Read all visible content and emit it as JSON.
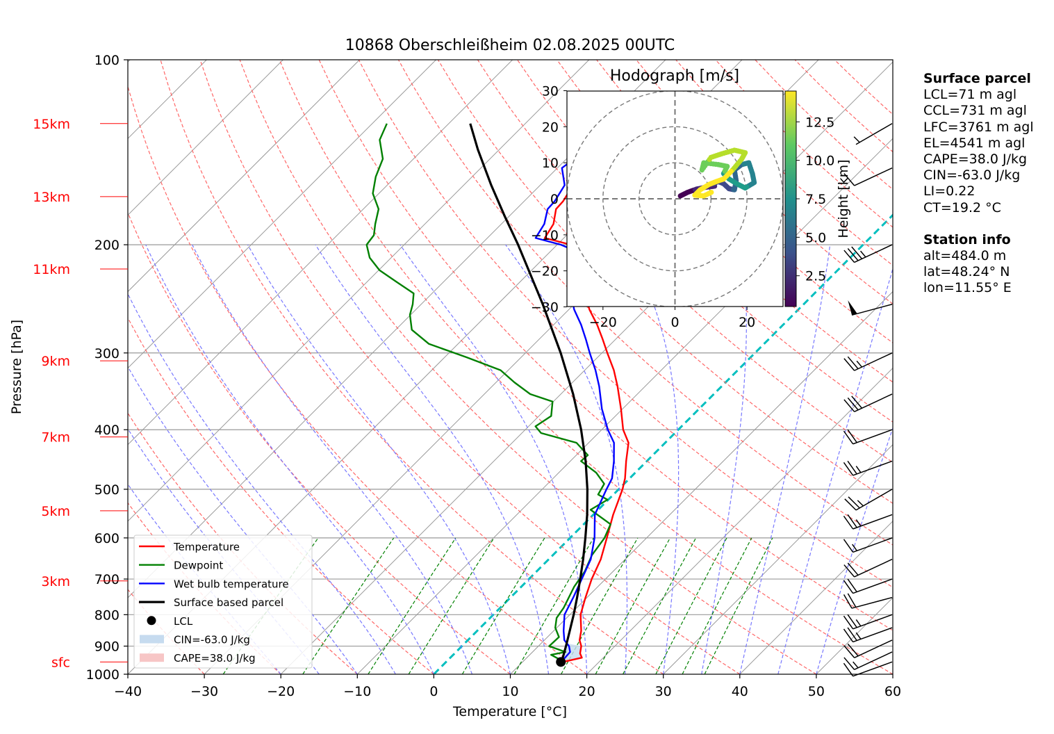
{
  "title": "10868 Oberschleißheim 02.08.2025 00UTC",
  "colors": {
    "temperature": "#ff0000",
    "dewpoint": "#008000",
    "wetbulb": "#0000ff",
    "parcel": "#000000",
    "dry_adiabat": "#ff6666",
    "moist_adiabat": "#7777ff",
    "mixing_ratio": "#008000",
    "isotherm": "#999999",
    "zero_isotherm": "#00bfbf",
    "cin_fill": "#c6dbef",
    "cape_fill": "#f7c6c6",
    "height_labels": "#ff0000"
  },
  "chart_data": [
    {
      "type": "line",
      "subtype": "skew-t log-p",
      "title": "10868 Oberschleißheim 02.08.2025 00UTC",
      "xlabel": "Temperature [°C]",
      "ylabel": "Pressure [hPa]",
      "xlim": [
        -40,
        60
      ],
      "ylim": [
        1000,
        100
      ],
      "y_scale": "log",
      "x_ticks": [
        "−40",
        "−30",
        "−20",
        "−10",
        "0",
        "10",
        "20",
        "30",
        "40",
        "50",
        "60"
      ],
      "y_ticks": [
        {
          "p": 100,
          "label": "100"
        },
        {
          "p": 200,
          "label": "200"
        },
        {
          "p": 300,
          "label": "300"
        },
        {
          "p": 400,
          "label": "400"
        },
        {
          "p": 500,
          "label": "500"
        },
        {
          "p": 600,
          "label": "600"
        },
        {
          "p": 700,
          "label": "700"
        },
        {
          "p": 800,
          "label": "800"
        },
        {
          "p": 900,
          "label": "900"
        },
        {
          "p": 1000,
          "label": "1000"
        }
      ],
      "height_labels": [
        {
          "label": "15km",
          "p": 127
        },
        {
          "label": "13km",
          "p": 167
        },
        {
          "label": "11km",
          "p": 219
        },
        {
          "label": "9km",
          "p": 309
        },
        {
          "label": "7km",
          "p": 411
        },
        {
          "label": "5km",
          "p": 542
        },
        {
          "label": "3km",
          "p": 705
        },
        {
          "label": "sfc",
          "p": 955
        }
      ],
      "grid": true,
      "legend_position": "lower-left",
      "legend": [
        {
          "label": "Temperature",
          "kind": "line",
          "color": "#ff0000"
        },
        {
          "label": "Dewpoint",
          "kind": "line",
          "color": "#008000"
        },
        {
          "label": "Wet bulb temperature",
          "kind": "line",
          "color": "#0000ff"
        },
        {
          "label": "Surface based parcel",
          "kind": "line",
          "color": "#000000"
        },
        {
          "label": "LCL",
          "kind": "dot",
          "color": "#000000"
        },
        {
          "label": "CIN=-63.0 J/kg",
          "kind": "patch",
          "color": "#c6dbef"
        },
        {
          "label": "CAPE=38.0 J/kg",
          "kind": "patch",
          "color": "#f7c6c6"
        }
      ],
      "series": [
        {
          "name": "Temperature",
          "points": [
            [
              955,
              15.3
            ],
            [
              940,
              17.2
            ],
            [
              925,
              16.4
            ],
            [
              900,
              15.6
            ],
            [
              880,
              14.6
            ],
            [
              850,
              13.6
            ],
            [
              800,
              11.4
            ],
            [
              750,
              9.8
            ],
            [
              700,
              8.2
            ],
            [
              650,
              6.8
            ],
            [
              600,
              4.8
            ],
            [
              550,
              2.6
            ],
            [
              500,
              0.5
            ],
            [
              480,
              -0.6
            ],
            [
              450,
              -2.7
            ],
            [
              420,
              -4.8
            ],
            [
              400,
              -7.2
            ],
            [
              370,
              -10.2
            ],
            [
              340,
              -13.6
            ],
            [
              320,
              -16.2
            ],
            [
              300,
              -19.3
            ],
            [
              285,
              -21.7
            ],
            [
              270,
              -24.3
            ],
            [
              255,
              -27.3
            ],
            [
              245,
              -29.1
            ],
            [
              235,
              -30.8
            ],
            [
              225,
              -32.3
            ],
            [
              218,
              -33.3
            ],
            [
              212,
              -33.8
            ],
            [
              205,
              -35.4
            ],
            [
              200,
              -38.2
            ],
            [
              195,
              -42.5
            ],
            [
              185,
              -43.2
            ],
            [
              175,
              -44.8
            ],
            [
              170,
              -44.9
            ],
            [
              160,
              -45.7
            ],
            [
              150,
              -48.4
            ],
            [
              145,
              -48.0
            ],
            [
              140,
              -48.6
            ],
            [
              135,
              -49.2
            ],
            [
              130,
              -51.7
            ],
            [
              127,
              -51.8
            ]
          ]
        },
        {
          "name": "Dewpoint",
          "points": [
            [
              955,
              14.8
            ],
            [
              945,
              14.4
            ],
            [
              930,
              12.8
            ],
            [
              920,
              14.3
            ],
            [
              900,
              11.4
            ],
            [
              870,
              11.5
            ],
            [
              840,
              9.8
            ],
            [
              810,
              8.7
            ],
            [
              780,
              8.3
            ],
            [
              720,
              6.9
            ],
            [
              680,
              6.3
            ],
            [
              640,
              5.1
            ],
            [
              600,
              4.5
            ],
            [
              570,
              3.5
            ],
            [
              540,
              -1.0
            ],
            [
              520,
              -0.1
            ],
            [
              510,
              -2.0
            ],
            [
              490,
              -2.6
            ],
            [
              470,
              -5.1
            ],
            [
              450,
              -8.6
            ],
            [
              440,
              -8.5
            ],
            [
              420,
              -11.6
            ],
            [
              405,
              -17.5
            ],
            [
              395,
              -19.1
            ],
            [
              380,
              -18.4
            ],
            [
              360,
              -20.1
            ],
            [
              350,
              -24.0
            ],
            [
              335,
              -27.6
            ],
            [
              320,
              -31.0
            ],
            [
              305,
              -37.1
            ],
            [
              290,
              -43.8
            ],
            [
              275,
              -47.9
            ],
            [
              260,
              -50.1
            ],
            [
              250,
              -51.1
            ],
            [
              240,
              -52.4
            ],
            [
              230,
              -56.1
            ],
            [
              220,
              -59.9
            ],
            [
              210,
              -62.8
            ],
            [
              200,
              -64.9
            ],
            [
              193,
              -65.2
            ],
            [
              185,
              -66.5
            ],
            [
              175,
              -68.0
            ],
            [
              165,
              -70.8
            ],
            [
              155,
              -72.6
            ],
            [
              145,
              -74.0
            ],
            [
              135,
              -76.9
            ],
            [
              127,
              -78.1
            ]
          ]
        },
        {
          "name": "Wet bulb temperature",
          "points": [
            [
              955,
              15.0
            ],
            [
              940,
              15.0
            ],
            [
              920,
              14.9
            ],
            [
              900,
              14.0
            ],
            [
              880,
              12.6
            ],
            [
              850,
              11.3
            ],
            [
              800,
              9.3
            ],
            [
              750,
              8.2
            ],
            [
              700,
              6.9
            ],
            [
              650,
              5.5
            ],
            [
              600,
              3.2
            ],
            [
              550,
              0.2
            ],
            [
              500,
              -1.6
            ],
            [
              480,
              -2.3
            ],
            [
              450,
              -4.3
            ],
            [
              420,
              -6.7
            ],
            [
              400,
              -9.2
            ],
            [
              370,
              -12.7
            ],
            [
              340,
              -16.0
            ],
            [
              320,
              -18.6
            ],
            [
              300,
              -21.6
            ],
            [
              285,
              -23.9
            ],
            [
              270,
              -26.4
            ],
            [
              255,
              -29.3
            ],
            [
              245,
              -31.0
            ],
            [
              235,
              -32.6
            ],
            [
              225,
              -34.0
            ],
            [
              218,
              -34.7
            ],
            [
              212,
              -35.1
            ],
            [
              205,
              -36.6
            ],
            [
              200,
              -39.5
            ],
            [
              195,
              -43.7
            ],
            [
              185,
              -44.4
            ],
            [
              175,
              -45.9
            ],
            [
              170,
              -46.0
            ],
            [
              160,
              -46.8
            ],
            [
              150,
              -49.4
            ],
            [
              145,
              -49.0
            ],
            [
              140,
              -49.6
            ],
            [
              135,
              -50.2
            ],
            [
              130,
              -52.7
            ],
            [
              127,
              -52.7
            ]
          ]
        },
        {
          "name": "Surface based parcel",
          "points": [
            [
              955,
              15.0
            ],
            [
              940,
              14.7
            ],
            [
              900,
              13.6
            ],
            [
              850,
              12.1
            ],
            [
              800,
              10.5
            ],
            [
              750,
              8.7
            ],
            [
              700,
              6.7
            ],
            [
              650,
              4.5
            ],
            [
              600,
              2.0
            ],
            [
              550,
              -0.8
            ],
            [
              500,
              -4.1
            ],
            [
              450,
              -8.0
            ],
            [
              400,
              -12.7
            ],
            [
              350,
              -18.4
            ],
            [
              300,
              -25.4
            ],
            [
              250,
              -34.1
            ],
            [
              220,
              -40.4
            ],
            [
              200,
              -45.1
            ],
            [
              180,
              -50.5
            ],
            [
              160,
              -56.4
            ],
            [
              140,
              -62.8
            ],
            [
              127,
              -67.2
            ]
          ]
        }
      ],
      "lcl": {
        "p": 955,
        "t": 15.0
      },
      "cin_area": "between parcel and temperature from surface to ~890 hPa",
      "wind_barbs": [
        {
          "p": 955,
          "dir": 250,
          "speed_kt": 10
        },
        {
          "p": 920,
          "dir": 245,
          "speed_kt": 15
        },
        {
          "p": 880,
          "dir": 245,
          "speed_kt": 20
        },
        {
          "p": 840,
          "dir": 250,
          "speed_kt": 25
        },
        {
          "p": 800,
          "dir": 250,
          "speed_kt": 25
        },
        {
          "p": 750,
          "dir": 255,
          "speed_kt": 20
        },
        {
          "p": 700,
          "dir": 250,
          "speed_kt": 20
        },
        {
          "p": 650,
          "dir": 245,
          "speed_kt": 20
        },
        {
          "p": 600,
          "dir": 250,
          "speed_kt": 15
        },
        {
          "p": 550,
          "dir": 250,
          "speed_kt": 25
        },
        {
          "p": 500,
          "dir": 240,
          "speed_kt": 25
        },
        {
          "p": 450,
          "dir": 250,
          "speed_kt": 25
        },
        {
          "p": 400,
          "dir": 250,
          "speed_kt": 20
        },
        {
          "p": 350,
          "dir": 245,
          "speed_kt": 30
        },
        {
          "p": 300,
          "dir": 245,
          "speed_kt": 25
        },
        {
          "p": 250,
          "dir": 255,
          "speed_kt": 50
        },
        {
          "p": 200,
          "dir": 245,
          "speed_kt": 35
        },
        {
          "p": 150,
          "dir": 245,
          "speed_kt": 10
        },
        {
          "p": 127,
          "dir": 240,
          "speed_kt": 5
        }
      ]
    },
    {
      "type": "scatter",
      "subtype": "hodograph",
      "title": "Hodograph [m/s]",
      "xlim": [
        -30,
        30
      ],
      "ylim": [
        -30,
        30
      ],
      "x_ticks": [
        "−20",
        "0",
        "20"
      ],
      "y_ticks": [
        "30",
        "20",
        "10",
        "0",
        "−10",
        "−20",
        "−30"
      ],
      "rings": [
        10,
        20,
        30
      ],
      "colorbar": {
        "label": "Height [km]",
        "ticks": [
          "2.5",
          "5.0",
          "7.5",
          "10.0",
          "12.5"
        ],
        "range": [
          0.5,
          14.5
        ],
        "colormap": "viridis"
      },
      "points": [
        {
          "u": 1.5,
          "v": 0.8,
          "h": 0.5
        },
        {
          "u": 3.5,
          "v": 1.8,
          "h": 1.0
        },
        {
          "u": 6.0,
          "v": 2.7,
          "h": 1.5
        },
        {
          "u": 8.5,
          "v": 3.2,
          "h": 2.0
        },
        {
          "u": 11.0,
          "v": 3.5,
          "h": 2.5
        },
        {
          "u": 10.2,
          "v": 4.0,
          "h": 3.0
        },
        {
          "u": 12.0,
          "v": 4.8,
          "h": 3.5
        },
        {
          "u": 13.5,
          "v": 4.2,
          "h": 4.0
        },
        {
          "u": 15.0,
          "v": 2.8,
          "h": 4.5
        },
        {
          "u": 16.5,
          "v": 2.5,
          "h": 5.0
        },
        {
          "u": 17.0,
          "v": 5.0,
          "h": 5.5
        },
        {
          "u": 16.5,
          "v": 8.0,
          "h": 6.0
        },
        {
          "u": 18.5,
          "v": 9.5,
          "h": 6.5
        },
        {
          "u": 20.5,
          "v": 10.0,
          "h": 7.0
        },
        {
          "u": 21.5,
          "v": 7.0,
          "h": 7.5
        },
        {
          "u": 22.0,
          "v": 4.5,
          "h": 8.0
        },
        {
          "u": 19.5,
          "v": 3.0,
          "h": 8.5
        },
        {
          "u": 17.5,
          "v": 4.0,
          "h": 9.0
        },
        {
          "u": 15.0,
          "v": 5.5,
          "h": 9.5
        },
        {
          "u": 13.5,
          "v": 7.0,
          "h": 10.0
        },
        {
          "u": 14.5,
          "v": 9.0,
          "h": 10.5
        },
        {
          "u": 12.0,
          "v": 9.5,
          "h": 11.0
        },
        {
          "u": 8.0,
          "v": 10.0,
          "h": 11.5
        },
        {
          "u": 7.5,
          "v": 8.0,
          "h": 11.5
        },
        {
          "u": 10.0,
          "v": 11.5,
          "h": 12.0
        },
        {
          "u": 13.0,
          "v": 12.5,
          "h": 12.5
        },
        {
          "u": 16.5,
          "v": 13.5,
          "h": 12.8
        },
        {
          "u": 19.5,
          "v": 12.8,
          "h": 13.0
        },
        {
          "u": 18.5,
          "v": 11.0,
          "h": 13.3
        },
        {
          "u": 16.0,
          "v": 8.0,
          "h": 13.6
        },
        {
          "u": 13.5,
          "v": 5.5,
          "h": 13.9
        },
        {
          "u": 11.5,
          "v": 4.8,
          "h": 14.1
        },
        {
          "u": 9.5,
          "v": 4.0,
          "h": 14.3
        },
        {
          "u": 7.0,
          "v": 2.5,
          "h": 14.4
        },
        {
          "u": 5.5,
          "v": 1.0,
          "h": 14.5
        },
        {
          "u": 8.0,
          "v": 0.8,
          "h": 14.5
        },
        {
          "u": 10.5,
          "v": 2.0,
          "h": 14.5
        }
      ]
    }
  ],
  "info": {
    "surface_parcel": {
      "heading": "Surface parcel",
      "lines": [
        "LCL=71 m agl",
        "CCL=731 m agl",
        "LFC=3761 m agl",
        "EL=4541 m agl",
        "CAPE=38.0 J/kg",
        "CIN=-63.0 J/kg",
        "LI=0.22",
        "CT=19.2 °C"
      ]
    },
    "station": {
      "heading": "Station info",
      "lines": [
        "alt=484.0 m",
        "lat=48.24° N",
        "lon=11.55° E"
      ]
    }
  }
}
